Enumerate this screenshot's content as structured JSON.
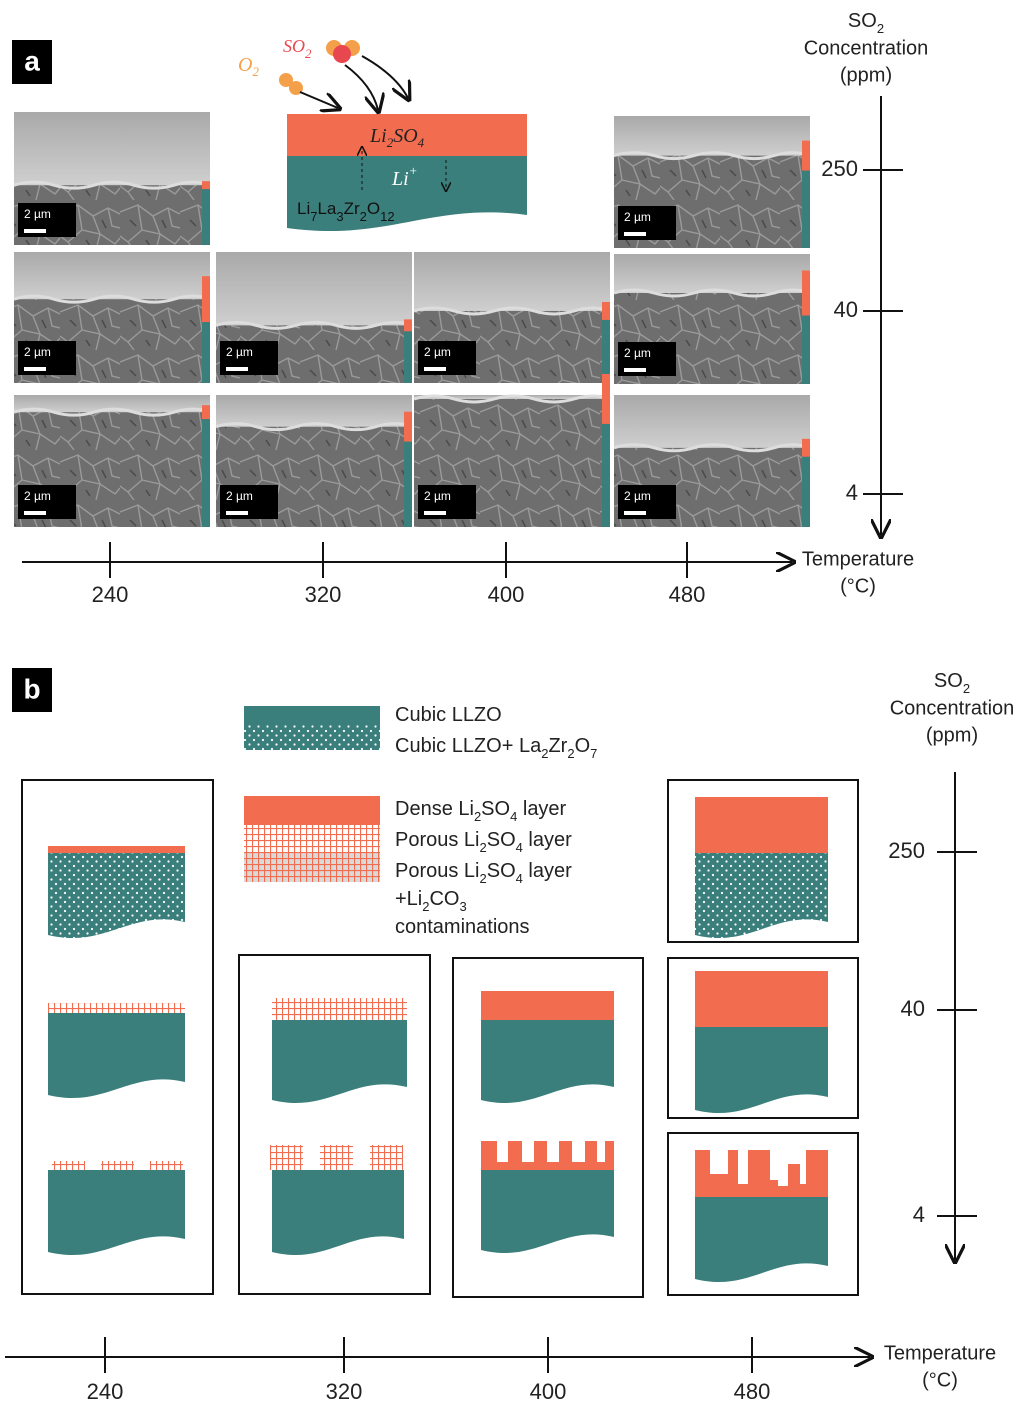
{
  "panel_a": {
    "label": "a",
    "y_axis": {
      "title": {
        "line1": [
          "SO",
          "2"
        ],
        "line2": "Concentration",
        "line3": "(ppm)"
      },
      "ticks": [
        250,
        40,
        4
      ]
    },
    "x_axis": {
      "title": "Temperature",
      "unit": "(°C)",
      "ticks": [
        240,
        320,
        400,
        480
      ]
    },
    "scale_bars": [
      "2 µm",
      "2 µm",
      "2 µm",
      "2 µm",
      "2 µm",
      "2 µm",
      "2 µm",
      "2 µm",
      "2 µm",
      "2 µm"
    ],
    "schematic": {
      "o2": [
        "O",
        "2"
      ],
      "so2": [
        "SO",
        "2"
      ],
      "layer": [
        "Li",
        "2",
        "SO",
        "4"
      ],
      "ion": [
        "Li",
        "+"
      ],
      "substrate": [
        "Li",
        "7",
        "La",
        "3",
        "Zr",
        "2",
        "O",
        "12"
      ]
    }
  },
  "panel_b": {
    "label": "b",
    "y_axis": {
      "title": {
        "line1": [
          "SO",
          "2"
        ],
        "line2": "Concentration",
        "line3": "(ppm)"
      },
      "ticks": [
        250,
        40,
        4
      ]
    },
    "x_axis": {
      "title": "Temperature",
      "unit": "(°C)",
      "ticks": [
        240,
        320,
        400,
        480
      ]
    },
    "legend": [
      [
        "Cubic LLZO"
      ],
      [
        "Cubic LLZO+ La",
        "2",
        "Zr",
        "2",
        "O",
        "7"
      ],
      [
        "Dense Li",
        "2",
        "SO",
        "4",
        " layer"
      ],
      [
        "Porous Li",
        "2",
        "SO",
        "4",
        " layer"
      ],
      [
        "Porous Li",
        "2",
        "SO",
        "4",
        " layer"
      ],
      [
        "+Li",
        "2",
        "CO",
        "3"
      ],
      [
        "contaminations"
      ]
    ]
  }
}
